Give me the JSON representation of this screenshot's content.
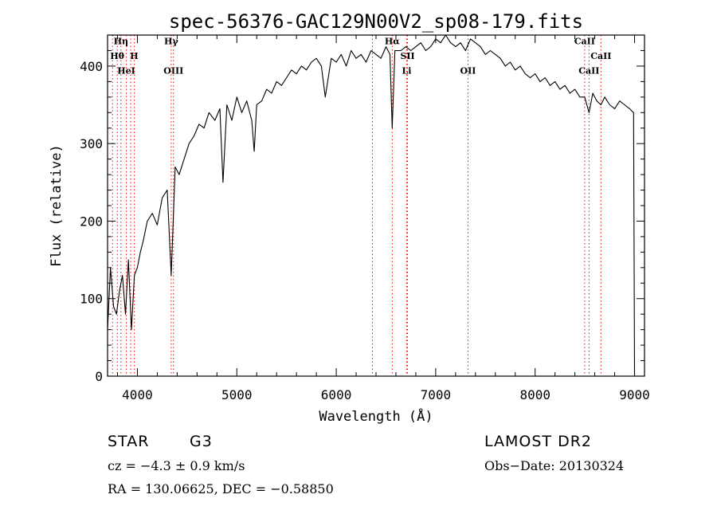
{
  "chart_data": {
    "type": "line",
    "title": "spec-56376-GAC129N00V2_sp08-179.fits",
    "xlabel": "Wavelength (Å)",
    "ylabel": "Flux (relative)",
    "xlim": [
      3700,
      9100
    ],
    "ylim": [
      0,
      440
    ],
    "x_ticks": [
      4000,
      5000,
      6000,
      7000,
      8000,
      9000
    ],
    "y_ticks": [
      0,
      100,
      200,
      300,
      400
    ],
    "grid": false,
    "series": [
      {
        "x": [
          3700,
          3730,
          3760,
          3790,
          3820,
          3850,
          3880,
          3910,
          3940,
          3970,
          4000,
          4030,
          4060,
          4100,
          4150,
          4200,
          4250,
          4300,
          4340,
          4380,
          4420,
          4470,
          4520,
          4570,
          4620,
          4670,
          4720,
          4780,
          4830,
          4861,
          4900,
          4950,
          5000,
          5050,
          5100,
          5150,
          5175,
          5200,
          5250,
          5300,
          5350,
          5400,
          5450,
          5500,
          5550,
          5600,
          5650,
          5700,
          5750,
          5800,
          5850,
          5890,
          5950,
          6000,
          6050,
          6100,
          6150,
          6200,
          6250,
          6300,
          6350,
          6400,
          6450,
          6500,
          6540,
          6563,
          6590,
          6650,
          6700,
          6750,
          6800,
          6850,
          6900,
          6950,
          7000,
          7050,
          7100,
          7150,
          7200,
          7250,
          7300,
          7350,
          7400,
          7450,
          7500,
          7550,
          7600,
          7650,
          7700,
          7750,
          7800,
          7850,
          7900,
          7950,
          8000,
          8050,
          8100,
          8150,
          8200,
          8250,
          8300,
          8350,
          8400,
          8450,
          8498,
          8542,
          8580,
          8620,
          8662,
          8700,
          8750,
          8800,
          8850,
          8900,
          8950,
          8990,
          9000
        ],
        "y": [
          60,
          140,
          90,
          80,
          110,
          130,
          80,
          150,
          60,
          130,
          140,
          160,
          175,
          200,
          210,
          195,
          230,
          240,
          130,
          270,
          260,
          280,
          300,
          310,
          325,
          320,
          340,
          330,
          345,
          250,
          350,
          330,
          360,
          340,
          355,
          330,
          290,
          350,
          355,
          370,
          365,
          380,
          375,
          385,
          395,
          390,
          400,
          395,
          405,
          410,
          400,
          360,
          410,
          405,
          415,
          400,
          420,
          410,
          415,
          405,
          420,
          415,
          410,
          425,
          415,
          320,
          420,
          420,
          425,
          420,
          425,
          430,
          420,
          425,
          435,
          430,
          440,
          430,
          425,
          430,
          420,
          435,
          430,
          425,
          415,
          420,
          415,
          410,
          400,
          405,
          395,
          400,
          390,
          385,
          390,
          380,
          385,
          375,
          380,
          370,
          375,
          365,
          370,
          360,
          360,
          340,
          365,
          355,
          350,
          360,
          350,
          345,
          355,
          350,
          345,
          340,
          0
        ]
      }
    ],
    "annotations": [
      {
        "text": "Hη",
        "x": 3835,
        "y": 428
      },
      {
        "text": "Hθ",
        "x": 3797,
        "y": 409
      },
      {
        "text": "H",
        "x": 3968,
        "y": 409
      },
      {
        "text": "HeI",
        "x": 3888,
        "y": 390
      },
      {
        "text": "Hγ",
        "x": 4340,
        "y": 428
      },
      {
        "text": "OIII",
        "x": 4363,
        "y": 390
      },
      {
        "text": "Hα",
        "x": 6563,
        "y": 428
      },
      {
        "text": "SII",
        "x": 6717,
        "y": 409
      },
      {
        "text": "Li",
        "x": 6708,
        "y": 390
      },
      {
        "text": "OII",
        "x": 7325,
        "y": 390
      },
      {
        "text": "CaII",
        "x": 8498,
        "y": 428
      },
      {
        "text": "CaII",
        "x": 8662,
        "y": 409
      },
      {
        "text": "CaII",
        "x": 8542,
        "y": 390
      }
    ],
    "line_markers": [
      3750,
      3798,
      3835,
      3889,
      3933,
      3970,
      4340,
      4363,
      6364,
      6563,
      6717,
      6708,
      7325,
      8498,
      8542,
      8662
    ],
    "marker_color": "#ff0000"
  },
  "info": {
    "obj_class": "STAR",
    "subclass": "G3",
    "survey": "LAMOST DR2",
    "velocity": "cz = −4.3 ± 0.9 km/s",
    "obs_date": "Obs−Date: 20130324",
    "coords": "RA = 130.06625, DEC =  −0.58850"
  }
}
